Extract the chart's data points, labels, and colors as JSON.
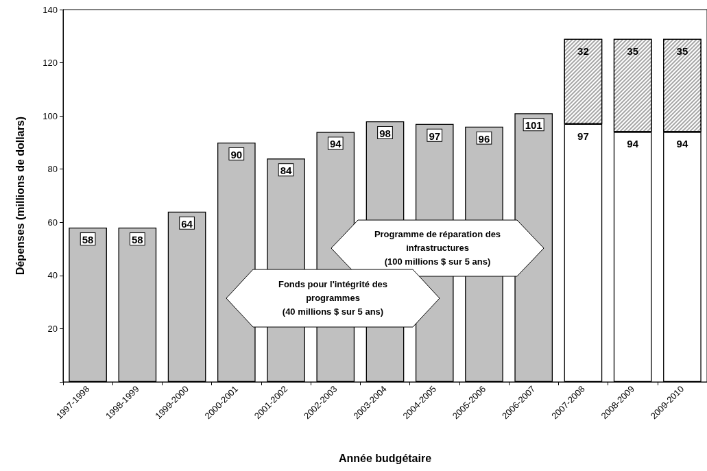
{
  "chart_data": {
    "type": "bar",
    "stacked": true,
    "xlabel": "Année budgétaire",
    "ylabel": "Dépenses (millions de dollars)",
    "categories": [
      "1997-1998",
      "1998-1999",
      "1999-2000",
      "2000-2001",
      "2001-2002",
      "2002-2003",
      "2003-2004",
      "2004-2005",
      "2005-2006",
      "2006-2007",
      "2007-2008",
      "2008-2009",
      "2009-2010"
    ],
    "series": [
      {
        "colors": [
          "#c0c0c0",
          "#c0c0c0",
          "#c0c0c0",
          "#c0c0c0",
          "#c0c0c0",
          "#c0c0c0",
          "#c0c0c0",
          "#c0c0c0",
          "#c0c0c0",
          "#c0c0c0",
          "#ffffff",
          "#ffffff",
          "#ffffff"
        ],
        "values": [
          58,
          58,
          64,
          90,
          84,
          94,
          98,
          97,
          96,
          101,
          97,
          94,
          94
        ]
      },
      {
        "color": "#a6a6a6",
        "values": [
          null,
          null,
          null,
          null,
          null,
          null,
          null,
          null,
          null,
          null,
          32,
          35,
          35
        ]
      }
    ],
    "ylim": [
      0,
      140
    ],
    "yticks": [
      {
        "value": 0,
        "label": null
      },
      20,
      40,
      60,
      80,
      100,
      120,
      140
    ],
    "grid": false,
    "data_labels": true,
    "annotations": [
      "Programme de réparation des infrastructures\n(100 millions $ sur 5 ans)",
      "Fonds pour l'intégrité des programmes\n(40 millions $ sur 5 ans)"
    ]
  }
}
